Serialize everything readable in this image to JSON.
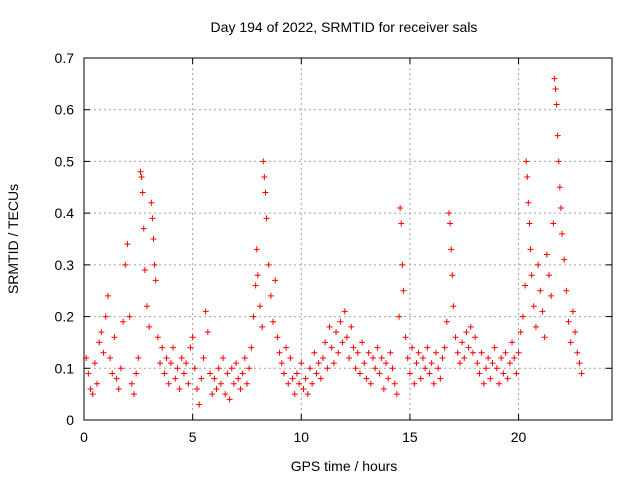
{
  "chart_data": {
    "type": "scatter",
    "title": "Day 194 of 2022, SRMTID for receiver sals",
    "xlabel": "GPS time / hours",
    "ylabel": "SRMTID / TECUs",
    "xlim": [
      0,
      24.3
    ],
    "ylim": [
      0,
      0.7
    ],
    "xticks": [
      0,
      5,
      10,
      15,
      20
    ],
    "xtick_labels": [
      "0",
      "5",
      "10",
      "15",
      "20"
    ],
    "yticks": [
      0,
      0.1,
      0.2,
      0.3,
      0.4,
      0.5,
      0.6,
      0.7
    ],
    "ytick_labels": [
      "0",
      "0.1",
      "0.2",
      "0.3",
      "0.4",
      "0.5",
      "0.6",
      "0.7"
    ],
    "grid": true,
    "series": [
      {
        "name": "sals",
        "marker": "+",
        "color": "#ff0000",
        "points": [
          [
            0.1,
            0.12
          ],
          [
            0.2,
            0.09
          ],
          [
            0.3,
            0.06
          ],
          [
            0.4,
            0.05
          ],
          [
            0.5,
            0.11
          ],
          [
            0.6,
            0.07
          ],
          [
            0.7,
            0.15
          ],
          [
            0.8,
            0.17
          ],
          [
            0.9,
            0.13
          ],
          [
            1.0,
            0.2
          ],
          [
            1.1,
            0.24
          ],
          [
            1.2,
            0.12
          ],
          [
            1.3,
            0.09
          ],
          [
            1.4,
            0.16
          ],
          [
            1.5,
            0.08
          ],
          [
            1.6,
            0.06
          ],
          [
            1.7,
            0.1
          ],
          [
            1.8,
            0.19
          ],
          [
            1.9,
            0.3
          ],
          [
            2.0,
            0.34
          ],
          [
            2.1,
            0.2
          ],
          [
            2.2,
            0.07
          ],
          [
            2.3,
            0.05
          ],
          [
            2.4,
            0.09
          ],
          [
            2.5,
            0.12
          ],
          [
            2.6,
            0.48
          ],
          [
            2.65,
            0.47
          ],
          [
            2.7,
            0.44
          ],
          [
            2.75,
            0.37
          ],
          [
            2.8,
            0.29
          ],
          [
            2.9,
            0.22
          ],
          [
            3.0,
            0.18
          ],
          [
            3.1,
            0.42
          ],
          [
            3.15,
            0.39
          ],
          [
            3.2,
            0.35
          ],
          [
            3.25,
            0.3
          ],
          [
            3.3,
            0.27
          ],
          [
            3.4,
            0.16
          ],
          [
            3.5,
            0.11
          ],
          [
            3.6,
            0.14
          ],
          [
            3.7,
            0.09
          ],
          [
            3.8,
            0.12
          ],
          [
            3.9,
            0.07
          ],
          [
            4.0,
            0.11
          ],
          [
            4.1,
            0.14
          ],
          [
            4.2,
            0.08
          ],
          [
            4.3,
            0.1
          ],
          [
            4.4,
            0.06
          ],
          [
            4.5,
            0.12
          ],
          [
            4.6,
            0.09
          ],
          [
            4.7,
            0.11
          ],
          [
            4.8,
            0.07
          ],
          [
            4.9,
            0.14
          ],
          [
            5.0,
            0.16
          ],
          [
            5.1,
            0.1
          ],
          [
            5.2,
            0.06
          ],
          [
            5.3,
            0.03
          ],
          [
            5.4,
            0.08
          ],
          [
            5.5,
            0.12
          ],
          [
            5.6,
            0.21
          ],
          [
            5.7,
            0.17
          ],
          [
            5.8,
            0.09
          ],
          [
            5.9,
            0.05
          ],
          [
            6.0,
            0.08
          ],
          [
            6.1,
            0.06
          ],
          [
            6.2,
            0.1
          ],
          [
            6.3,
            0.07
          ],
          [
            6.4,
            0.12
          ],
          [
            6.5,
            0.05
          ],
          [
            6.6,
            0.09
          ],
          [
            6.7,
            0.04
          ],
          [
            6.8,
            0.1
          ],
          [
            6.9,
            0.07
          ],
          [
            7.0,
            0.11
          ],
          [
            7.1,
            0.08
          ],
          [
            7.2,
            0.06
          ],
          [
            7.3,
            0.09
          ],
          [
            7.4,
            0.12
          ],
          [
            7.5,
            0.07
          ],
          [
            7.6,
            0.1
          ],
          [
            7.7,
            0.14
          ],
          [
            7.8,
            0.2
          ],
          [
            7.9,
            0.26
          ],
          [
            7.95,
            0.33
          ],
          [
            8.0,
            0.28
          ],
          [
            8.1,
            0.22
          ],
          [
            8.2,
            0.18
          ],
          [
            8.25,
            0.5
          ],
          [
            8.3,
            0.47
          ],
          [
            8.35,
            0.44
          ],
          [
            8.4,
            0.39
          ],
          [
            8.5,
            0.3
          ],
          [
            8.6,
            0.24
          ],
          [
            8.7,
            0.19
          ],
          [
            8.8,
            0.27
          ],
          [
            8.9,
            0.16
          ],
          [
            9.0,
            0.13
          ],
          [
            9.1,
            0.11
          ],
          [
            9.2,
            0.09
          ],
          [
            9.3,
            0.14
          ],
          [
            9.4,
            0.07
          ],
          [
            9.5,
            0.12
          ],
          [
            9.6,
            0.08
          ],
          [
            9.7,
            0.05
          ],
          [
            9.8,
            0.09
          ],
          [
            9.9,
            0.07
          ],
          [
            10.0,
            0.11
          ],
          [
            10.1,
            0.06
          ],
          [
            10.2,
            0.08
          ],
          [
            10.3,
            0.05
          ],
          [
            10.4,
            0.1
          ],
          [
            10.5,
            0.07
          ],
          [
            10.6,
            0.13
          ],
          [
            10.7,
            0.09
          ],
          [
            10.8,
            0.11
          ],
          [
            10.9,
            0.08
          ],
          [
            11.0,
            0.12
          ],
          [
            11.1,
            0.15
          ],
          [
            11.2,
            0.1
          ],
          [
            11.3,
            0.18
          ],
          [
            11.4,
            0.14
          ],
          [
            11.5,
            0.11
          ],
          [
            11.6,
            0.17
          ],
          [
            11.7,
            0.13
          ],
          [
            11.8,
            0.19
          ],
          [
            11.9,
            0.15
          ],
          [
            12.0,
            0.21
          ],
          [
            12.1,
            0.16
          ],
          [
            12.2,
            0.12
          ],
          [
            12.3,
            0.18
          ],
          [
            12.4,
            0.14
          ],
          [
            12.5,
            0.1
          ],
          [
            12.6,
            0.13
          ],
          [
            12.7,
            0.09
          ],
          [
            12.8,
            0.15
          ],
          [
            12.9,
            0.11
          ],
          [
            13.0,
            0.08
          ],
          [
            13.1,
            0.13
          ],
          [
            13.2,
            0.07
          ],
          [
            13.3,
            0.12
          ],
          [
            13.4,
            0.1
          ],
          [
            13.5,
            0.14
          ],
          [
            13.6,
            0.09
          ],
          [
            13.7,
            0.12
          ],
          [
            13.8,
            0.06
          ],
          [
            13.9,
            0.11
          ],
          [
            14.0,
            0.08
          ],
          [
            14.1,
            0.13
          ],
          [
            14.2,
            0.1
          ],
          [
            14.3,
            0.07
          ],
          [
            14.4,
            0.05
          ],
          [
            14.5,
            0.2
          ],
          [
            14.55,
            0.41
          ],
          [
            14.6,
            0.38
          ],
          [
            14.65,
            0.3
          ],
          [
            14.7,
            0.25
          ],
          [
            14.8,
            0.16
          ],
          [
            14.9,
            0.12
          ],
          [
            15.0,
            0.09
          ],
          [
            15.1,
            0.14
          ],
          [
            15.2,
            0.07
          ],
          [
            15.3,
            0.11
          ],
          [
            15.4,
            0.13
          ],
          [
            15.5,
            0.08
          ],
          [
            15.6,
            0.12
          ],
          [
            15.7,
            0.1
          ],
          [
            15.8,
            0.14
          ],
          [
            15.9,
            0.09
          ],
          [
            16.0,
            0.11
          ],
          [
            16.1,
            0.07
          ],
          [
            16.2,
            0.13
          ],
          [
            16.3,
            0.1
          ],
          [
            16.4,
            0.08
          ],
          [
            16.5,
            0.12
          ],
          [
            16.6,
            0.14
          ],
          [
            16.7,
            0.19
          ],
          [
            16.8,
            0.4
          ],
          [
            16.85,
            0.38
          ],
          [
            16.9,
            0.33
          ],
          [
            16.95,
            0.28
          ],
          [
            17.0,
            0.22
          ],
          [
            17.1,
            0.16
          ],
          [
            17.2,
            0.13
          ],
          [
            17.3,
            0.11
          ],
          [
            17.4,
            0.15
          ],
          [
            17.5,
            0.12
          ],
          [
            17.6,
            0.17
          ],
          [
            17.7,
            0.14
          ],
          [
            17.8,
            0.18
          ],
          [
            17.9,
            0.13
          ],
          [
            18.0,
            0.16
          ],
          [
            18.1,
            0.11
          ],
          [
            18.2,
            0.09
          ],
          [
            18.3,
            0.13
          ],
          [
            18.4,
            0.07
          ],
          [
            18.5,
            0.1
          ],
          [
            18.6,
            0.12
          ],
          [
            18.7,
            0.08
          ],
          [
            18.8,
            0.11
          ],
          [
            18.9,
            0.14
          ],
          [
            19.0,
            0.1
          ],
          [
            19.1,
            0.07
          ],
          [
            19.2,
            0.12
          ],
          [
            19.3,
            0.09
          ],
          [
            19.4,
            0.13
          ],
          [
            19.5,
            0.08
          ],
          [
            19.6,
            0.11
          ],
          [
            19.7,
            0.15
          ],
          [
            19.8,
            0.12
          ],
          [
            19.9,
            0.09
          ],
          [
            20.0,
            0.13
          ],
          [
            20.1,
            0.17
          ],
          [
            20.2,
            0.2
          ],
          [
            20.3,
            0.26
          ],
          [
            20.35,
            0.5
          ],
          [
            20.4,
            0.47
          ],
          [
            20.45,
            0.42
          ],
          [
            20.5,
            0.38
          ],
          [
            20.55,
            0.33
          ],
          [
            20.6,
            0.28
          ],
          [
            20.7,
            0.22
          ],
          [
            20.8,
            0.18
          ],
          [
            20.9,
            0.3
          ],
          [
            21.0,
            0.25
          ],
          [
            21.1,
            0.21
          ],
          [
            21.2,
            0.16
          ],
          [
            21.3,
            0.32
          ],
          [
            21.4,
            0.28
          ],
          [
            21.5,
            0.24
          ],
          [
            21.6,
            0.38
          ],
          [
            21.65,
            0.66
          ],
          [
            21.7,
            0.64
          ],
          [
            21.75,
            0.61
          ],
          [
            21.8,
            0.55
          ],
          [
            21.85,
            0.5
          ],
          [
            21.9,
            0.45
          ],
          [
            21.95,
            0.41
          ],
          [
            22.0,
            0.36
          ],
          [
            22.1,
            0.31
          ],
          [
            22.2,
            0.25
          ],
          [
            22.3,
            0.19
          ],
          [
            22.4,
            0.15
          ],
          [
            22.5,
            0.21
          ],
          [
            22.6,
            0.17
          ],
          [
            22.7,
            0.13
          ],
          [
            22.8,
            0.11
          ],
          [
            22.9,
            0.09
          ]
        ]
      }
    ]
  }
}
